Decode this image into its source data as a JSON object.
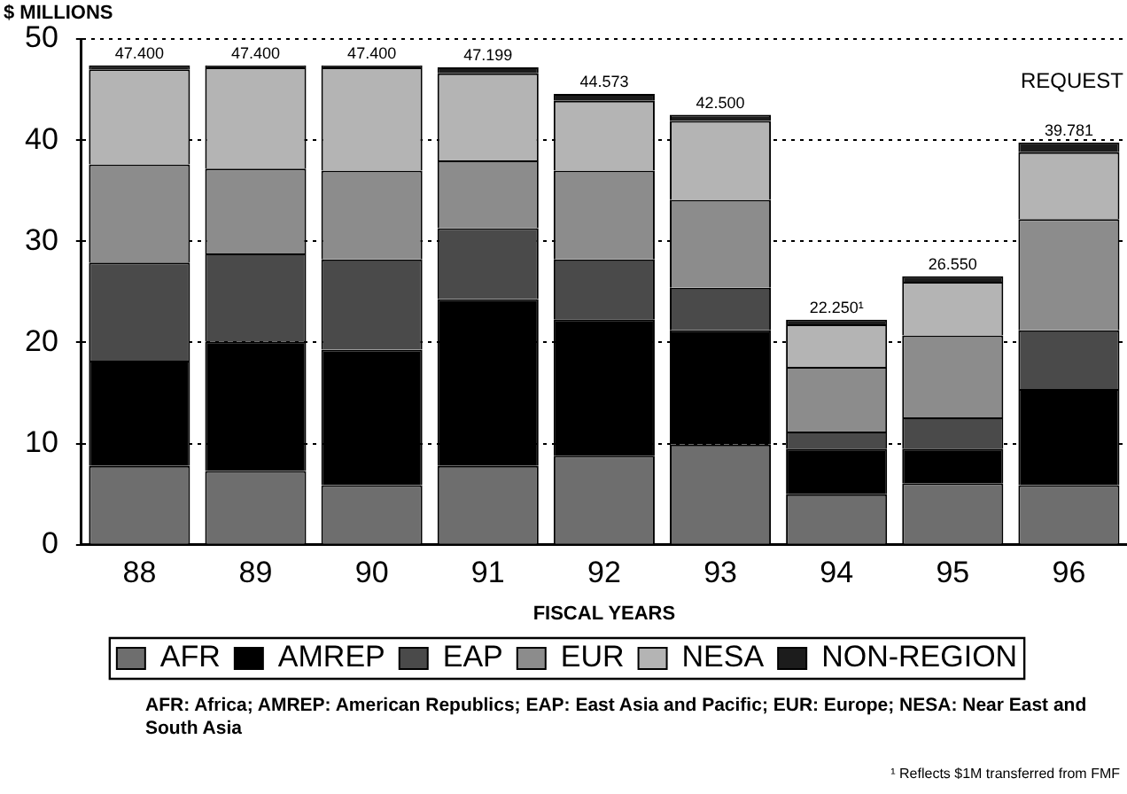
{
  "chart_data": {
    "type": "bar",
    "stacked": true,
    "ylabel": "$ MILLIONS",
    "xlabel": "FISCAL YEARS",
    "categories": [
      "88",
      "89",
      "90",
      "91",
      "92",
      "93",
      "94",
      "95",
      "96"
    ],
    "series": [
      {
        "name": "AFR",
        "color": "#6e6e6e",
        "values": [
          7.8,
          7.3,
          5.9,
          7.8,
          8.8,
          9.9,
          5.0,
          6.1,
          5.9
        ]
      },
      {
        "name": "AMREP",
        "color": "#000000",
        "values": [
          10.4,
          12.8,
          13.4,
          16.5,
          13.5,
          11.3,
          4.5,
          3.4,
          9.5
        ]
      },
      {
        "name": "EAP",
        "color": "#4a4a4a",
        "values": [
          9.7,
          8.7,
          8.9,
          7.0,
          5.9,
          4.2,
          1.7,
          3.1,
          5.8
        ]
      },
      {
        "name": "EUR",
        "color": "#8c8c8c",
        "values": [
          9.7,
          8.4,
          8.8,
          6.7,
          8.8,
          8.7,
          6.4,
          8.1,
          11.0
        ]
      },
      {
        "name": "NESA",
        "color": "#b4b4b4",
        "values": [
          9.4,
          10.0,
          10.2,
          8.6,
          6.9,
          7.8,
          4.2,
          5.3,
          6.6
        ]
      },
      {
        "name": "NON-REGION",
        "color": "#1c1c1c",
        "values": [
          0.4,
          0.2,
          0.2,
          0.599,
          0.673,
          0.6,
          0.45,
          0.55,
          0.981
        ]
      }
    ],
    "totals": [
      "47.400",
      "47.400",
      "47.400",
      "47.199",
      "44.573",
      "42.500",
      "22.250¹",
      "26.550",
      "39.781"
    ],
    "ylim": [
      0,
      50
    ],
    "yticks": [
      0,
      10,
      20,
      30,
      40,
      50
    ],
    "grid": "y",
    "legend": "bottom",
    "annotations": [
      "REQUEST",
      "AFR:  Africa; AMREP:  American Republics; EAP:  East Asia and Pacific; EUR:  Europe; NESA:  Near East and South Asia",
      "¹ Reflects $1M transferred from FMF"
    ]
  }
}
